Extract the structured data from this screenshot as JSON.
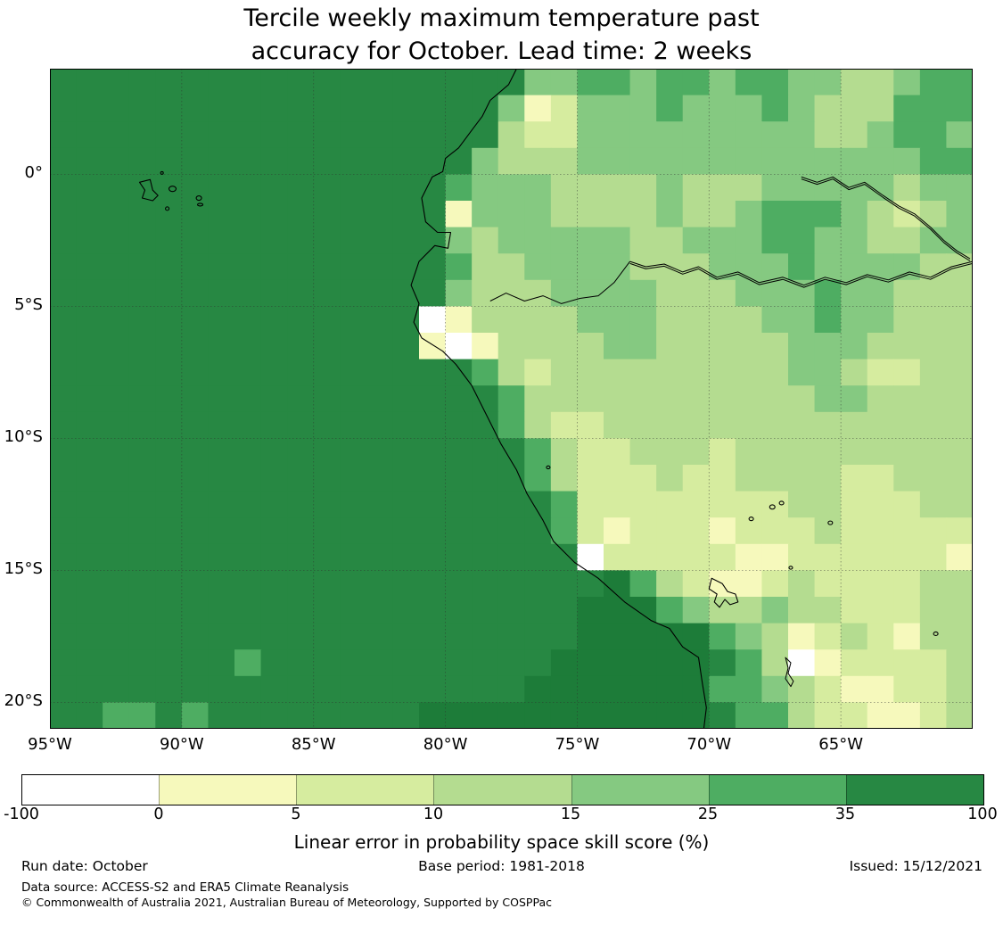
{
  "title": {
    "line1": "Tercile weekly maximum temperature past",
    "line2": "accuracy for October. Lead time: 2 weeks"
  },
  "colorbar": {
    "label": "Linear error in probability space skill score (%)",
    "tick_labels": [
      "-100",
      "0",
      "5",
      "10",
      "15",
      "25",
      "35",
      "100"
    ],
    "segment_colors": [
      "#ffffff",
      "#f6f9bc",
      "#d6ec9f",
      "#b4dc90",
      "#85c981",
      "#4ead62",
      "#278843"
    ]
  },
  "footer": {
    "run_date": "Run date: October",
    "base_period": "Base period: 1981-2018",
    "issued": "Issued: 15/12/2021",
    "data_source": "Data source: ACCESS-S2 and ERA5 Climate Reanalysis",
    "copyright": "© Commonwealth of Australia 2021, Australian Bureau of Meteorology, Supported by COSPPac"
  },
  "chart_data": {
    "type": "heatmap",
    "title": "Tercile weekly maximum temperature past accuracy for October. Lead time: 2 weeks",
    "colorbar_label": "Linear error in probability space skill score (%)",
    "legend_position": "bottom",
    "grid_on": true,
    "x_axis": {
      "tick_labels": [
        "95°W",
        "90°W",
        "85°W",
        "80°W",
        "75°W",
        "70°W",
        "65°W"
      ],
      "tick_lons": [
        -95,
        -90,
        -85,
        -80,
        -75,
        -70,
        -65
      ],
      "range_lon": [
        -95,
        -60
      ]
    },
    "y_axis": {
      "tick_labels": [
        "0°",
        "5°S",
        "10°S",
        "15°S",
        "20°S"
      ],
      "tick_lats": [
        0,
        -5,
        -10,
        -15,
        -20
      ],
      "range_lat": [
        4,
        -21
      ]
    },
    "bins": [
      {
        "key": "1",
        "range": "-100 to 0",
        "color": "#ffffff"
      },
      {
        "key": "2",
        "range": "0 to 5",
        "color": "#f6f9bc"
      },
      {
        "key": "3",
        "range": "5 to 10",
        "color": "#d6ec9f"
      },
      {
        "key": "4",
        "range": "10 to 15",
        "color": "#b4dc90"
      },
      {
        "key": "5",
        "range": "15 to 25",
        "color": "#85c981"
      },
      {
        "key": "6",
        "range": "25 to 35",
        "color": "#4ead62"
      },
      {
        "key": "7",
        "range": "35 to 100",
        "color": "#278843"
      },
      {
        "key": "8",
        "range": "35 to 100 (deepest shade, far south-west ocean/coast)",
        "color": "#1d7c39"
      }
    ],
    "grid": {
      "cell_deg": 1,
      "origin_lon_lat": [
        -95,
        4
      ],
      "cols": 35,
      "rows": 25,
      "rows_data": [
        "77777777777777777755665665665544566",
        "77777777777777777523555655565444666",
        "77777777777777777433555555555445665",
        "77777777777777775444555555555555566",
        "77777777777777765554444544455555455",
        "77777777777777725554444544566654345",
        "77777777777777754555554455566554455",
        "77777777777777764455554445556555544",
        "77777777777777754445555444555655444",
        "77777777777777124444555444455655444",
        "77777777777777212444455444445554444",
        "77777777777777776434444444445543344",
        "77777777777777777644444444444554444",
        "77777777777777777643344444444444444",
        "77777777777777777764334443444444444",
        "77777777777777777764333433444433444",
        "77777777777777777776333333334433344",
        "77777777777777777776323332333433333",
        "77777777777777777777133333223333332",
        "77777777777777777777786432234333344",
        "77777777777777777777888654454433344",
        "77777777777777777777888886542343244",
        "77777776777777777778888887641233334",
        "77777777777777777788888886654322334",
        "77667677777777888888888887664332234"
      ]
    }
  }
}
